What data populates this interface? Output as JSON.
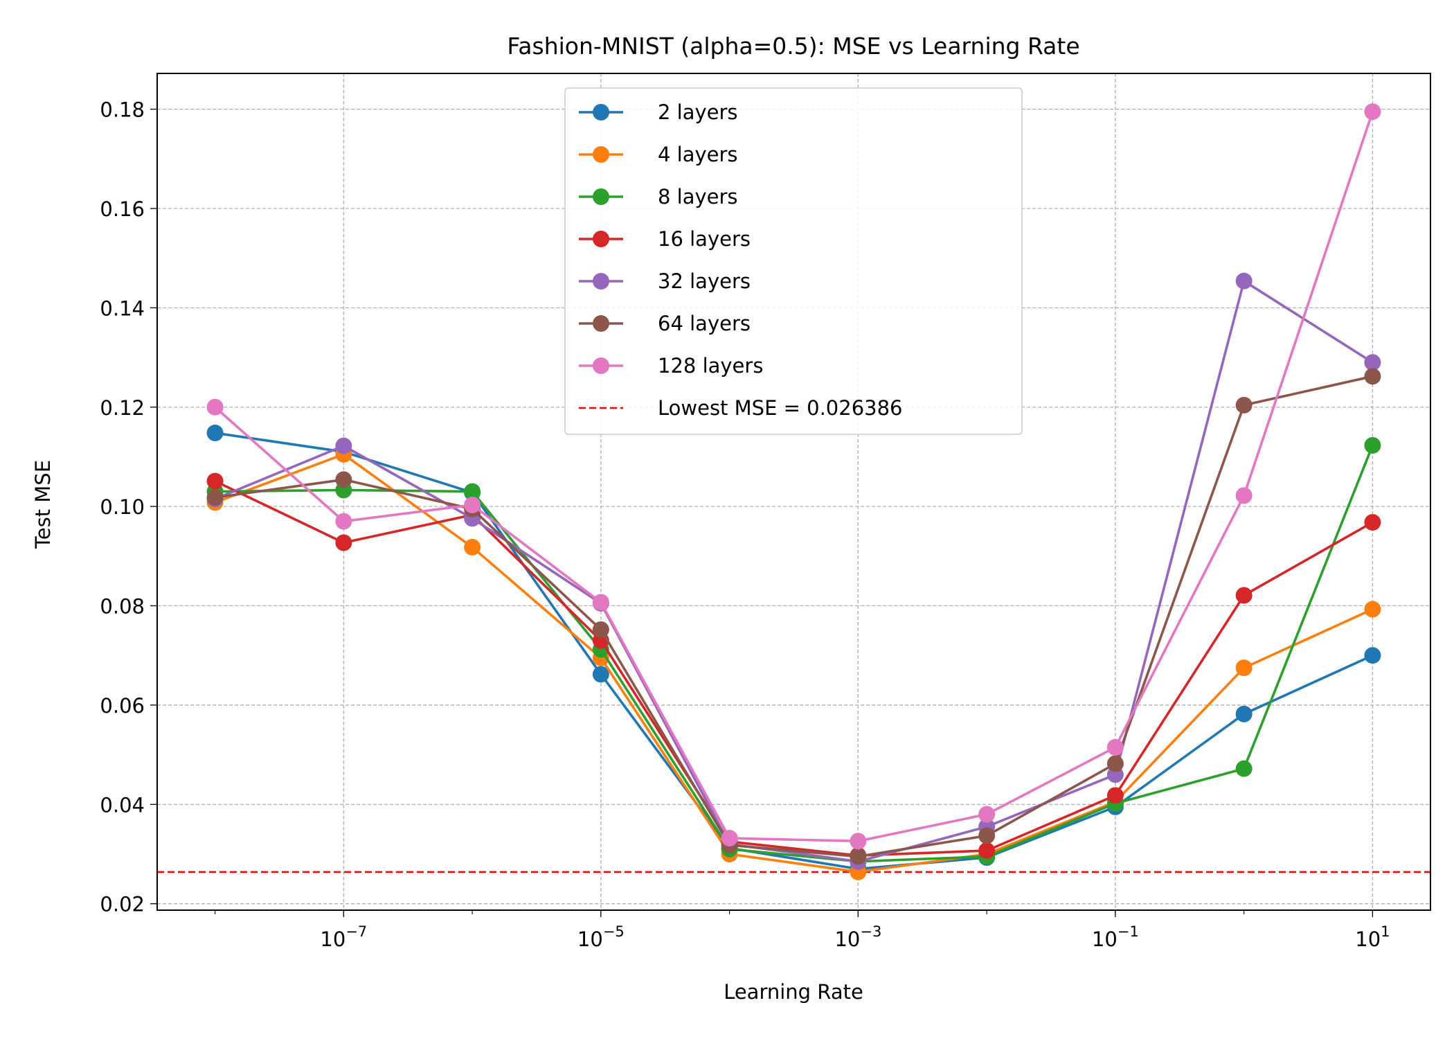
{
  "chart_data": {
    "type": "line",
    "title": "Fashion-MNIST (alpha=0.5): MSE vs Learning Rate",
    "xlabel": "Learning Rate",
    "ylabel": "Test MSE",
    "x_scale": "log",
    "x": [
      1e-08,
      1e-07,
      1e-06,
      1e-05,
      0.0001,
      0.001,
      0.01,
      0.1,
      1,
      10
    ],
    "x_ticks": [
      {
        "value": 1e-07,
        "base": "10",
        "exp": "−7"
      },
      {
        "value": 1e-05,
        "base": "10",
        "exp": "−5"
      },
      {
        "value": 0.001,
        "base": "10",
        "exp": "−3"
      },
      {
        "value": 0.1,
        "base": "10",
        "exp": "−1"
      },
      {
        "value": 10,
        "base": "10",
        "exp": "1"
      }
    ],
    "xlim_log10": [
      -8.45,
      1.45
    ],
    "ylim": [
      0.0187,
      0.1872
    ],
    "y_ticks": [
      {
        "value": 0.02,
        "label": "0.02"
      },
      {
        "value": 0.04,
        "label": "0.04"
      },
      {
        "value": 0.06,
        "label": "0.06"
      },
      {
        "value": 0.08,
        "label": "0.08"
      },
      {
        "value": 0.1,
        "label": "0.10"
      },
      {
        "value": 0.12,
        "label": "0.12"
      },
      {
        "value": 0.14,
        "label": "0.14"
      },
      {
        "value": 0.16,
        "label": "0.16"
      },
      {
        "value": 0.18,
        "label": "0.18"
      }
    ],
    "grid": true,
    "legend_position": "top-center",
    "series": [
      {
        "name": "2 layers",
        "color": "#1f77b4",
        "values": [
          0.1148,
          0.111,
          0.1028,
          0.0662,
          0.0312,
          0.027,
          0.0293,
          0.0395,
          0.0582,
          0.07
        ]
      },
      {
        "name": "4 layers",
        "color": "#ff7f0e",
        "values": [
          0.1008,
          0.1105,
          0.0918,
          0.0695,
          0.03,
          0.0264,
          0.03,
          0.0405,
          0.0675,
          0.0793
        ]
      },
      {
        "name": "8 layers",
        "color": "#2ca02c",
        "values": [
          0.103,
          0.1033,
          0.103,
          0.0712,
          0.031,
          0.0285,
          0.0295,
          0.0402,
          0.0472,
          0.1123
        ]
      },
      {
        "name": "16 layers",
        "color": "#d62728",
        "values": [
          0.1051,
          0.0927,
          0.0983,
          0.073,
          0.0325,
          0.0297,
          0.0307,
          0.0418,
          0.0821,
          0.0968
        ]
      },
      {
        "name": "32 layers",
        "color": "#9467bd",
        "values": [
          0.1015,
          0.1122,
          0.0976,
          0.0805,
          0.032,
          0.0285,
          0.0355,
          0.046,
          0.1454,
          0.129
        ]
      },
      {
        "name": "64 layers",
        "color": "#8c564b",
        "values": [
          0.1018,
          0.1054,
          0.0995,
          0.0752,
          0.0318,
          0.0295,
          0.0337,
          0.0482,
          0.1204,
          0.1262
        ]
      },
      {
        "name": "128 layers",
        "color": "#e377c2",
        "values": [
          0.12,
          0.097,
          0.1003,
          0.0807,
          0.0332,
          0.0326,
          0.038,
          0.0515,
          0.1022,
          0.1795
        ]
      }
    ],
    "reference_line": {
      "label": "Lowest MSE = 0.026386",
      "value": 0.026386,
      "color": "#ff0000",
      "style": "dashed"
    }
  }
}
